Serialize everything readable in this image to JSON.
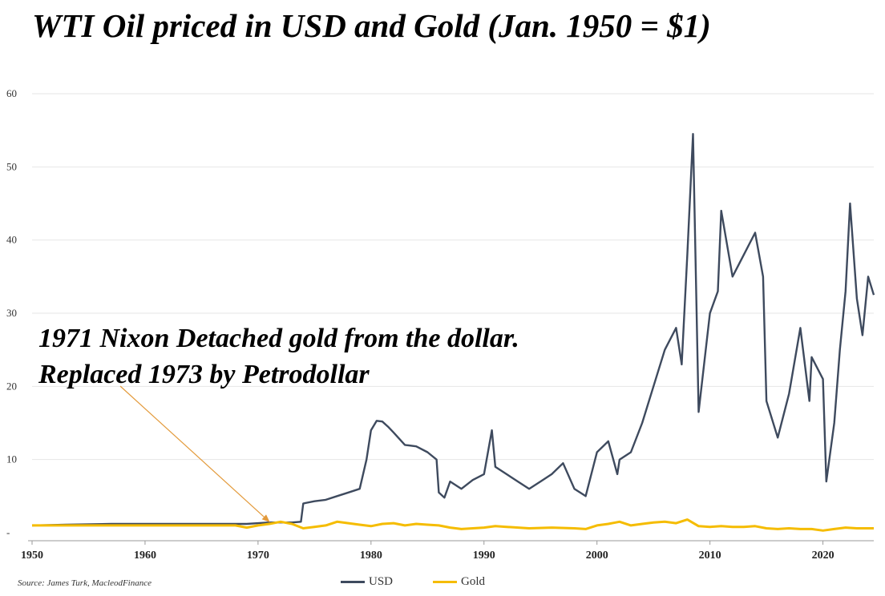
{
  "chart_data": {
    "type": "line",
    "title": "WTI Oil priced in USD and Gold (Jan. 1950 = $1)",
    "xlabel": "",
    "ylabel": "",
    "xlim": [
      1950,
      2024.5
    ],
    "ylim": [
      0,
      60
    ],
    "yticks": [
      0,
      10,
      20,
      30,
      40,
      50,
      60
    ],
    "ytick_labels": [
      "-",
      "10",
      "20",
      "30",
      "40",
      "50",
      "60"
    ],
    "xticks": [
      1950,
      1960,
      1970,
      1980,
      1990,
      2000,
      2010,
      2020
    ],
    "grid": true,
    "legend_position": "bottom-center",
    "annotation": {
      "text": "1971 Nixon Detached gold from the dollar.  Replaced 1973 by Petrodollar",
      "arrow_target": [
        1971,
        1.5
      ]
    },
    "source": "Source: James Turk, MacleodFinance",
    "series": [
      {
        "name": "USD",
        "color": "#3e4a5e",
        "points": [
          [
            1950,
            1.0
          ],
          [
            1953,
            1.1
          ],
          [
            1957,
            1.2
          ],
          [
            1960,
            1.2
          ],
          [
            1965,
            1.2
          ],
          [
            1969,
            1.2
          ],
          [
            1970,
            1.3
          ],
          [
            1971,
            1.4
          ],
          [
            1973,
            1.4
          ],
          [
            1973.8,
            1.5
          ],
          [
            1974,
            4.0
          ],
          [
            1975,
            4.3
          ],
          [
            1976,
            4.5
          ],
          [
            1977,
            5.0
          ],
          [
            1978,
            5.5
          ],
          [
            1979,
            6.0
          ],
          [
            1979.6,
            10.0
          ],
          [
            1980,
            14.0
          ],
          [
            1980.5,
            15.3
          ],
          [
            1981,
            15.2
          ],
          [
            1981.5,
            14.5
          ],
          [
            1982,
            13.7
          ],
          [
            1983,
            12.0
          ],
          [
            1984,
            11.8
          ],
          [
            1985,
            11.0
          ],
          [
            1985.8,
            10.0
          ],
          [
            1986,
            5.5
          ],
          [
            1986.5,
            4.8
          ],
          [
            1987,
            7.0
          ],
          [
            1988,
            6.0
          ],
          [
            1989,
            7.2
          ],
          [
            1990,
            8.0
          ],
          [
            1990.7,
            14.0
          ],
          [
            1991,
            9.0
          ],
          [
            1992,
            8.0
          ],
          [
            1993,
            7.0
          ],
          [
            1994,
            6.0
          ],
          [
            1995,
            7.0
          ],
          [
            1996,
            8.0
          ],
          [
            1997,
            9.5
          ],
          [
            1998,
            6.0
          ],
          [
            1999,
            5.0
          ],
          [
            2000,
            11.0
          ],
          [
            2001,
            12.5
          ],
          [
            2001.8,
            8.0
          ],
          [
            2002,
            10.0
          ],
          [
            2003,
            11.0
          ],
          [
            2004,
            15.0
          ],
          [
            2005,
            20.0
          ],
          [
            2006,
            25.0
          ],
          [
            2007,
            28.0
          ],
          [
            2007.5,
            23.0
          ],
          [
            2008,
            38.0
          ],
          [
            2008.5,
            54.5
          ],
          [
            2009,
            16.5
          ],
          [
            2010,
            30.0
          ],
          [
            2010.7,
            33.0
          ],
          [
            2011,
            44.0
          ],
          [
            2012,
            35.0
          ],
          [
            2013,
            38.0
          ],
          [
            2014,
            41.0
          ],
          [
            2014.7,
            35.0
          ],
          [
            2015,
            18.0
          ],
          [
            2016,
            13.0
          ],
          [
            2017,
            19.0
          ],
          [
            2018,
            28.0
          ],
          [
            2018.8,
            18.0
          ],
          [
            2019,
            24.0
          ],
          [
            2020,
            21.0
          ],
          [
            2020.3,
            7.0
          ],
          [
            2021,
            15.0
          ],
          [
            2021.5,
            25.0
          ],
          [
            2022,
            33.0
          ],
          [
            2022.4,
            45.0
          ],
          [
            2023,
            32.0
          ],
          [
            2023.5,
            27.0
          ],
          [
            2024,
            35.0
          ],
          [
            2024.5,
            32.5
          ]
        ]
      },
      {
        "name": "Gold",
        "color": "#f5bc00",
        "points": [
          [
            1950,
            1.0
          ],
          [
            1955,
            1.0
          ],
          [
            1960,
            1.0
          ],
          [
            1965,
            1.0
          ],
          [
            1968,
            1.0
          ],
          [
            1969,
            0.7
          ],
          [
            1970,
            1.0
          ],
          [
            1971,
            1.2
          ],
          [
            1972,
            1.5
          ],
          [
            1973,
            1.2
          ],
          [
            1974,
            0.6
          ],
          [
            1975,
            0.8
          ],
          [
            1976,
            1.0
          ],
          [
            1977,
            1.5
          ],
          [
            1978,
            1.3
          ],
          [
            1979,
            1.1
          ],
          [
            1980,
            0.9
          ],
          [
            1981,
            1.2
          ],
          [
            1982,
            1.3
          ],
          [
            1983,
            1.0
          ],
          [
            1984,
            1.2
          ],
          [
            1985,
            1.1
          ],
          [
            1986,
            1.0
          ],
          [
            1987,
            0.7
          ],
          [
            1988,
            0.5
          ],
          [
            1990,
            0.7
          ],
          [
            1991,
            0.9
          ],
          [
            1992,
            0.8
          ],
          [
            1994,
            0.6
          ],
          [
            1996,
            0.7
          ],
          [
            1998,
            0.6
          ],
          [
            1999,
            0.5
          ],
          [
            2000,
            1.0
          ],
          [
            2001,
            1.2
          ],
          [
            2002,
            1.5
          ],
          [
            2003,
            1.0
          ],
          [
            2004,
            1.2
          ],
          [
            2005,
            1.4
          ],
          [
            2006,
            1.5
          ],
          [
            2007,
            1.3
          ],
          [
            2008,
            1.8
          ],
          [
            2009,
            0.9
          ],
          [
            2010,
            0.8
          ],
          [
            2011,
            0.9
          ],
          [
            2012,
            0.8
          ],
          [
            2013,
            0.8
          ],
          [
            2014,
            0.9
          ],
          [
            2015,
            0.6
          ],
          [
            2016,
            0.5
          ],
          [
            2017,
            0.6
          ],
          [
            2018,
            0.5
          ],
          [
            2019,
            0.5
          ],
          [
            2020,
            0.3
          ],
          [
            2021,
            0.5
          ],
          [
            2022,
            0.7
          ],
          [
            2023,
            0.6
          ],
          [
            2024,
            0.6
          ],
          [
            2024.5,
            0.6
          ]
        ]
      }
    ]
  }
}
